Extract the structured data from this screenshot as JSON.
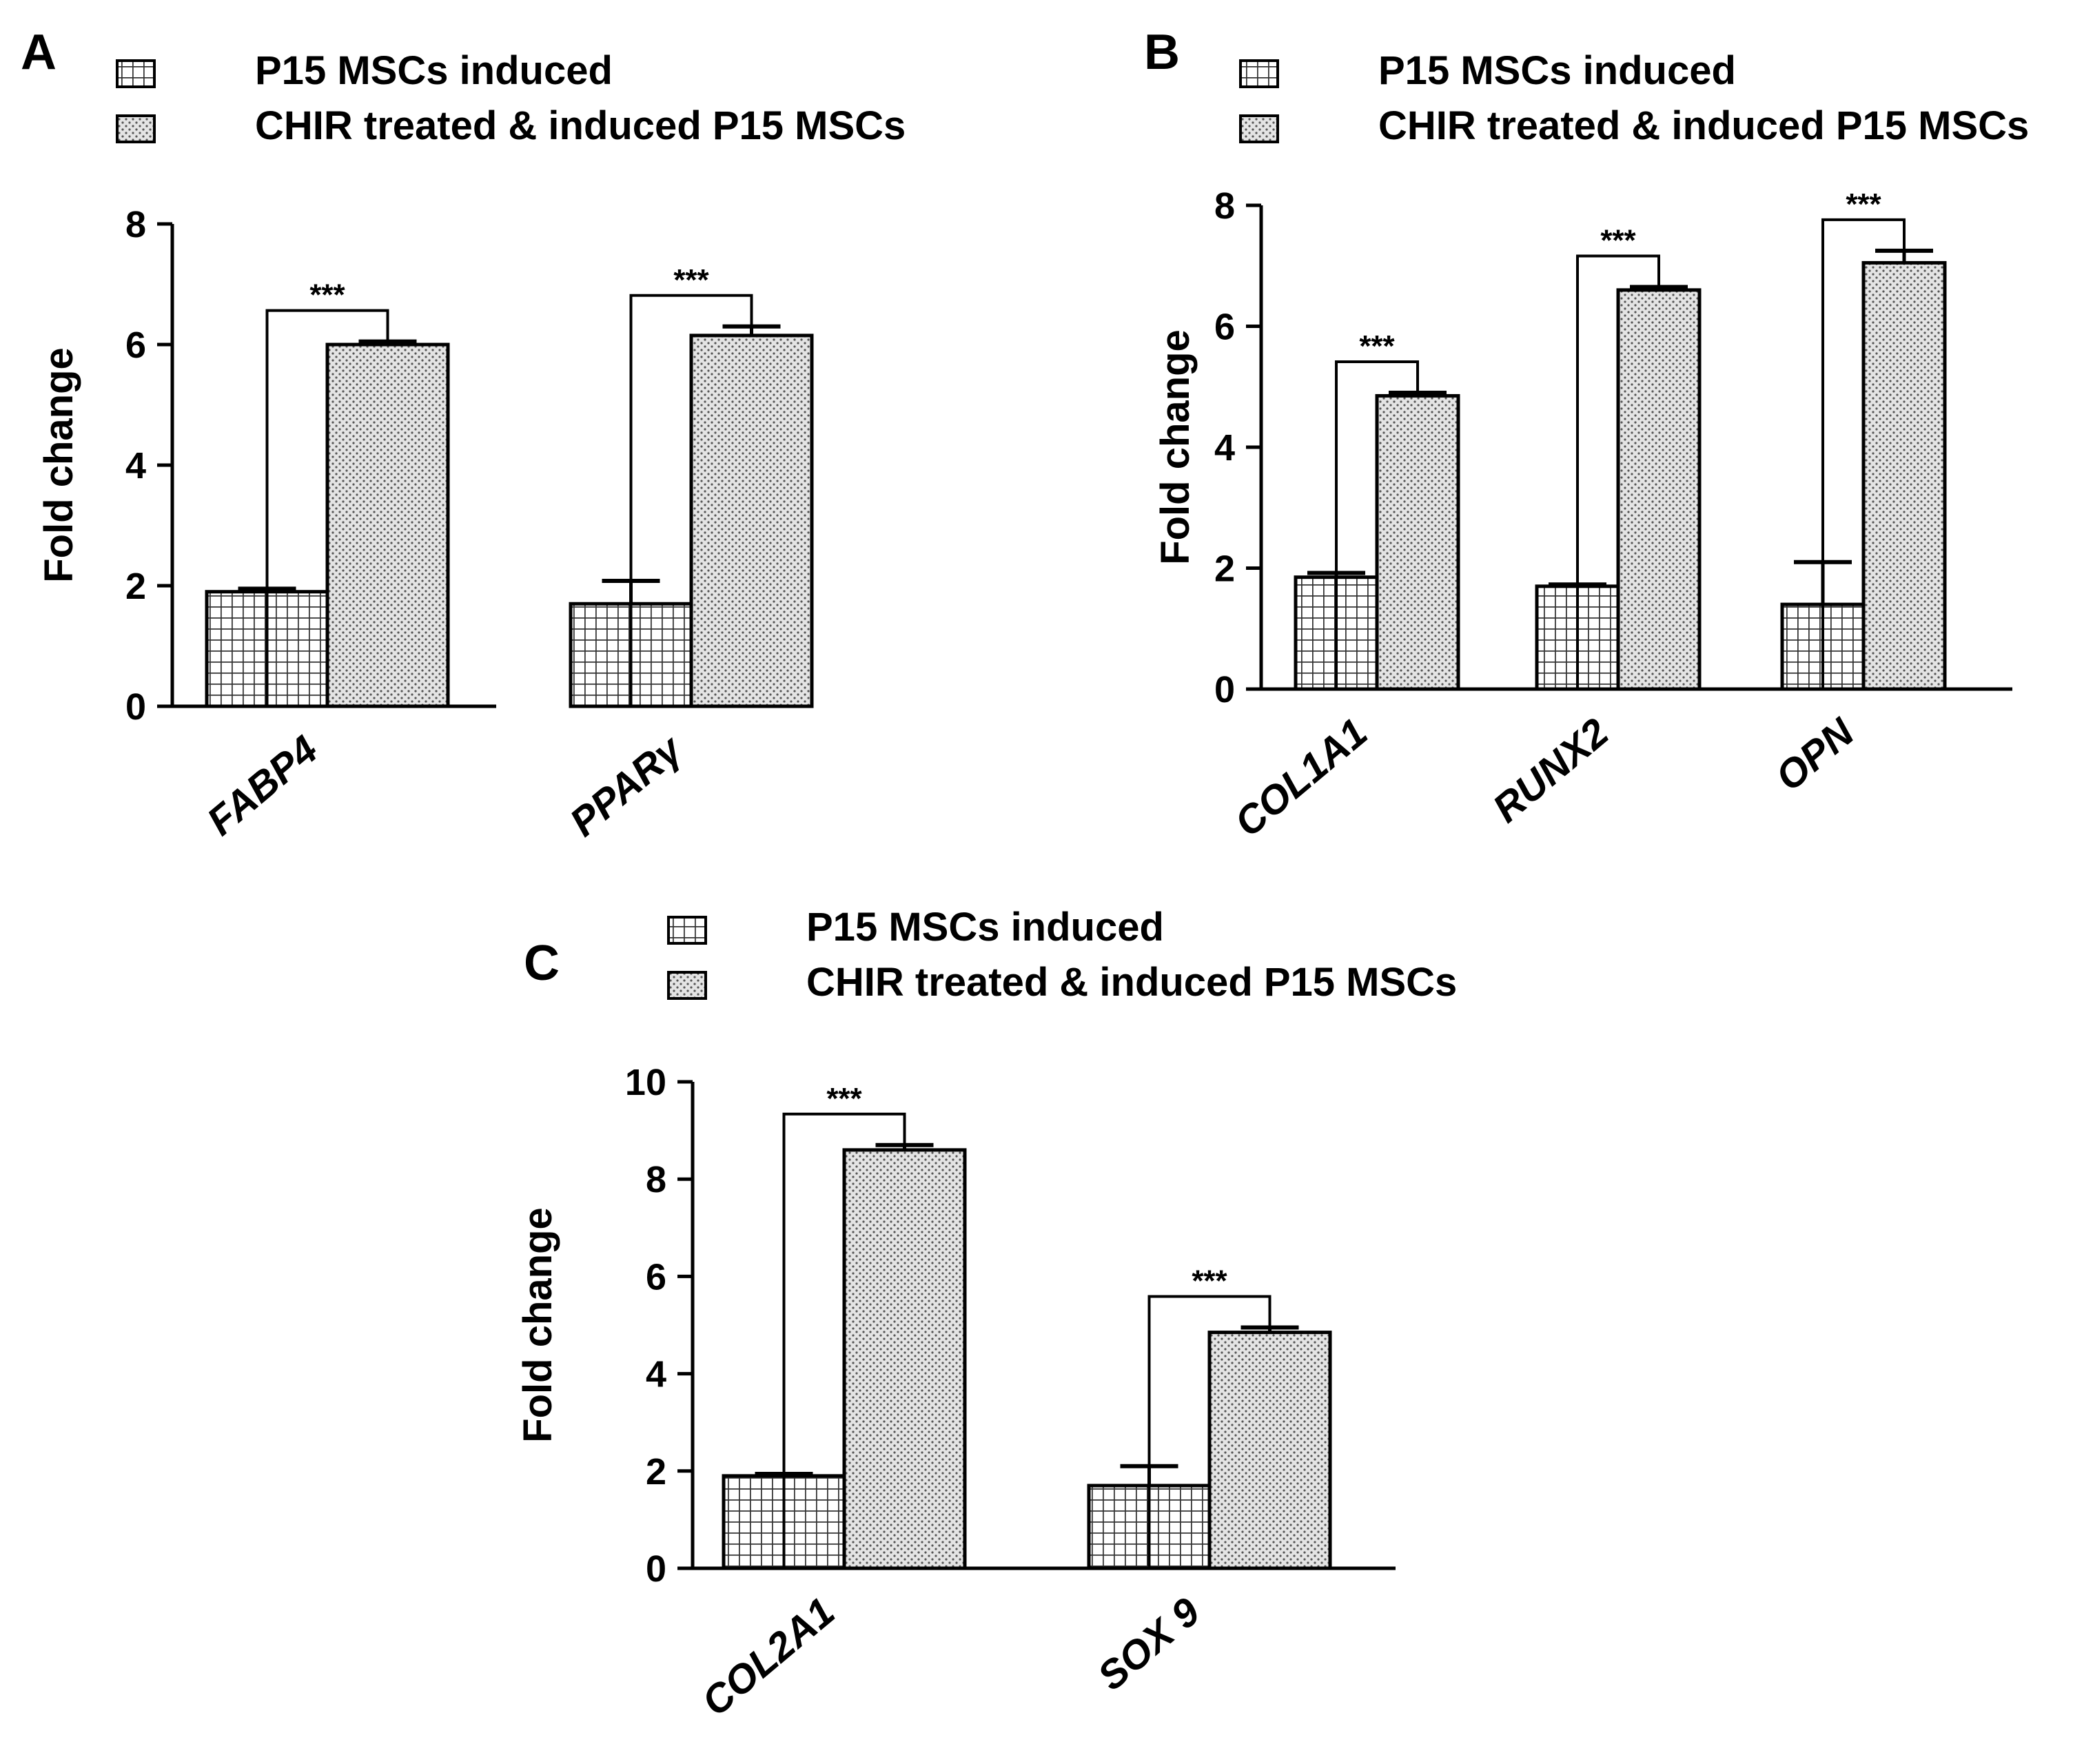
{
  "legend": {
    "series1": "P15 MSCs induced",
    "series2": "CHIR treated & induced P15 MSCs"
  },
  "colors": {
    "axis": "#000000",
    "fill1": "#ffffff",
    "fill2": "#e6e6e6",
    "pattern_line": "#333333"
  },
  "chart_data": [
    {
      "panel": "A",
      "type": "bar",
      "title": "",
      "ylabel": "Fold change",
      "xlabel": "",
      "ylim": [
        0,
        8
      ],
      "yticks": [
        "0",
        "2",
        "4",
        "6",
        "8"
      ],
      "categories": [
        "FABP4",
        "PPARγ"
      ],
      "series": [
        {
          "name": "P15 MSCs induced",
          "values": [
            1.9,
            1.7
          ],
          "errors": [
            0.05,
            0.38
          ]
        },
        {
          "name": "CHIR treated & induced P15 MSCs",
          "values": [
            6.0,
            6.15
          ],
          "errors": [
            0.05,
            0.15
          ]
        }
      ],
      "significance": [
        "***",
        "***"
      ]
    },
    {
      "panel": "B",
      "type": "bar",
      "title": "",
      "ylabel": "Fold change",
      "xlabel": "",
      "ylim": [
        0,
        8
      ],
      "yticks": [
        "0",
        "2",
        "4",
        "6",
        "8"
      ],
      "categories": [
        "COL1A1",
        "RUNX2",
        "OPN"
      ],
      "series": [
        {
          "name": "P15 MSCs induced",
          "values": [
            1.85,
            1.7,
            1.4
          ],
          "errors": [
            0.07,
            0.03,
            0.7
          ]
        },
        {
          "name": "CHIR treated & induced P15 MSCs",
          "values": [
            4.85,
            6.6,
            7.05
          ],
          "errors": [
            0.05,
            0.05,
            0.2
          ]
        }
      ],
      "significance": [
        "***",
        "***",
        "***"
      ]
    },
    {
      "panel": "C",
      "type": "bar",
      "title": "",
      "ylabel": "Fold change",
      "xlabel": "",
      "ylim": [
        0,
        10
      ],
      "yticks": [
        "0",
        "2",
        "4",
        "6",
        "8",
        "10"
      ],
      "categories": [
        "COL2A1",
        "SOX 9"
      ],
      "series": [
        {
          "name": "P15 MSCs induced",
          "values": [
            1.9,
            1.7
          ],
          "errors": [
            0.04,
            0.4
          ]
        },
        {
          "name": "CHIR treated & induced P15 MSCs",
          "values": [
            8.6,
            4.85
          ],
          "errors": [
            0.1,
            0.1
          ]
        }
      ],
      "significance": [
        "***",
        "***"
      ]
    }
  ]
}
